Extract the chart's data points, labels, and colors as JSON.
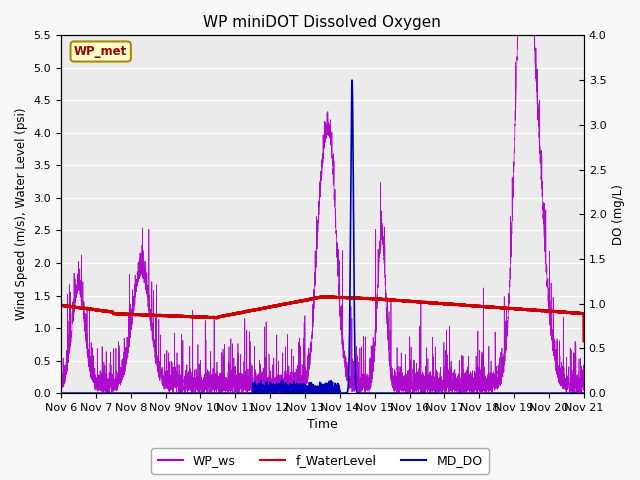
{
  "title": "WP miniDOT Dissolved Oxygen",
  "xlabel": "Time",
  "ylabel_left": "Wind Speed (m/s), Water Level (psi)",
  "ylabel_right": "DO (mg/L)",
  "ylim_left": [
    0.0,
    5.5
  ],
  "ylim_right": [
    0.0,
    4.0
  ],
  "xtick_labels": [
    "Nov 6",
    "Nov 7",
    "Nov 8",
    "Nov 9",
    "Nov 10",
    "Nov 11",
    "Nov 12",
    "Nov 13",
    "Nov 14",
    "Nov 15",
    "Nov 16",
    "Nov 17",
    "Nov 18",
    "Nov 19",
    "Nov 20",
    "Nov 21"
  ],
  "wp_ws_color": "#aa00cc",
  "f_wl_color": "#cc0000",
  "md_do_color": "#0000bb",
  "annotation_text": "WP_met",
  "annotation_color": "#990000",
  "annotation_bg": "#ffffcc",
  "annotation_border": "#aa8800",
  "plot_bg_color": "#ebebeb",
  "fig_bg_color": "#f8f8f8",
  "legend_labels": [
    "WP_ws",
    "f_WaterLevel",
    "MD_DO"
  ],
  "legend_colors": [
    "#aa00cc",
    "#cc0000",
    "#0000bb"
  ],
  "seed": 42,
  "n_points": 5000
}
